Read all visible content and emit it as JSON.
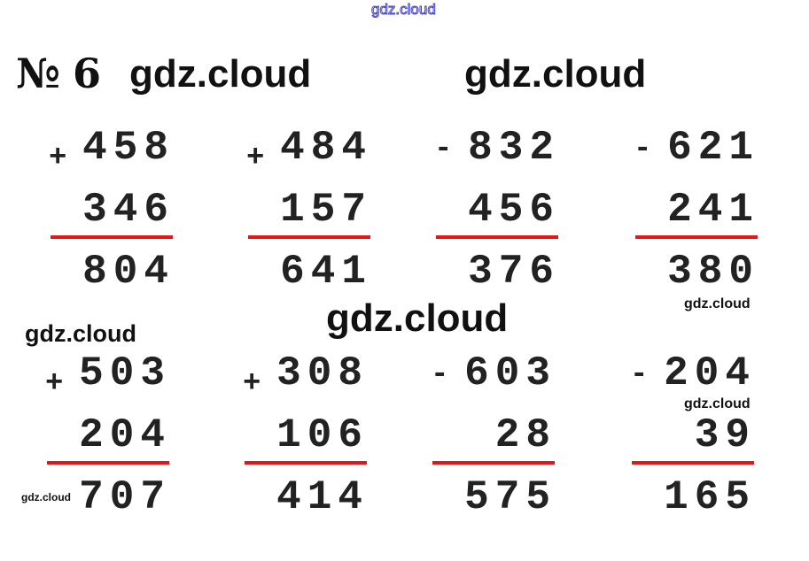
{
  "title": "№ 6",
  "watermarks": [
    "gdz.cloud",
    "gdz.cloud",
    "gdz.cloud",
    "gdz.cloud",
    "gdz.cloud",
    "gdz.cloud",
    "gdz.cloud",
    "gdz.cloud"
  ],
  "problems": [
    {
      "op": "+",
      "a": "458",
      "b": "346",
      "result": "804"
    },
    {
      "op": "+",
      "a": "484",
      "b": "157",
      "result": "641"
    },
    {
      "op": "-",
      "a": "832",
      "b": "456",
      "result": "376"
    },
    {
      "op": "-",
      "a": "621",
      "b": "241",
      "result": "380"
    },
    {
      "op": "+",
      "a": "503",
      "b": "204",
      "result": "707"
    },
    {
      "op": "+",
      "a": "308",
      "b": "106",
      "result": "414"
    },
    {
      "op": "-",
      "a": "603",
      "b": "28",
      "result": "575"
    },
    {
      "op": "-",
      "a": "204",
      "b": "39",
      "result": "165"
    }
  ],
  "colors": {
    "underline": "#e01818",
    "text": "#222222"
  }
}
